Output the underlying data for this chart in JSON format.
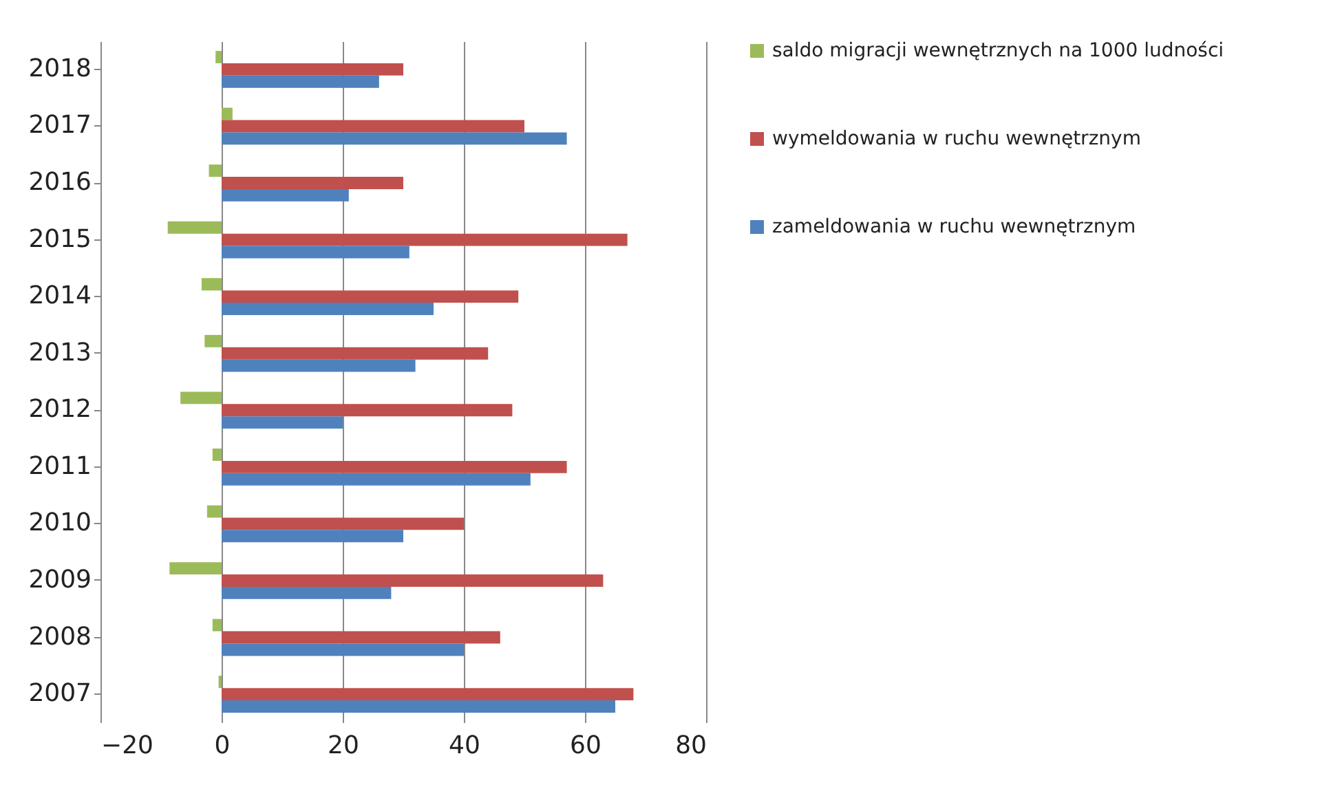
{
  "chart_data": {
    "type": "bar",
    "orientation": "horizontal",
    "categories": [
      "2018",
      "2017",
      "2016",
      "2015",
      "2014",
      "2013",
      "2012",
      "2011",
      "2010",
      "2009",
      "2008",
      "2007"
    ],
    "series": [
      {
        "name": "saldo migracji wewnętrznych na 1000 ludności",
        "color": "#9bbb59",
        "values": [
          -1,
          1.8,
          -2.1,
          -8.9,
          -3.3,
          -2.8,
          -6.8,
          -1.5,
          -2.4,
          -8.6,
          -1.5,
          -0.5
        ]
      },
      {
        "name": "wymeldowania w ruchu wewnętrznym",
        "color": "#c0504d",
        "values": [
          30,
          50,
          30,
          67,
          49,
          44,
          48,
          57,
          40,
          63,
          46,
          68
        ]
      },
      {
        "name": "zameldowania w ruchu wewnętrznym",
        "color": "#4f81bd",
        "values": [
          26,
          57,
          21,
          31,
          35,
          32,
          20,
          51,
          30,
          28,
          40,
          65
        ]
      }
    ],
    "xlim": [
      -20,
      80
    ],
    "xticks": [
      -20,
      0,
      20,
      40,
      60,
      80
    ],
    "grid": "x",
    "legend": "right"
  }
}
